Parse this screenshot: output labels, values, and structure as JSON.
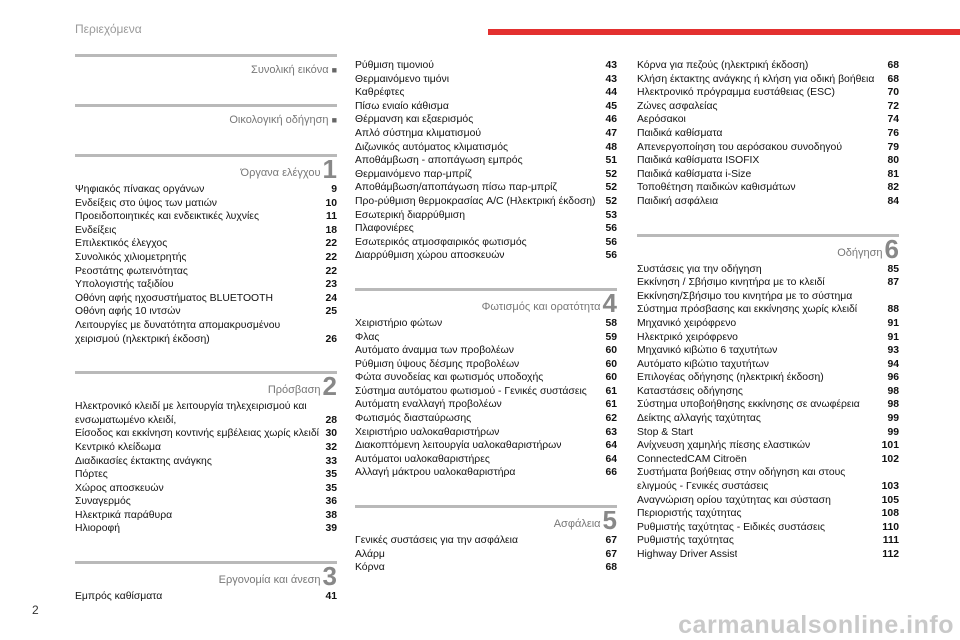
{
  "header": {
    "title": "Περιεχόμενα"
  },
  "page_number": "2",
  "watermark": "carmanualsonline.info",
  "columns": [
    {
      "blocks": [
        {
          "heading": {
            "title": "Συνολική εικόνα",
            "marker": "■"
          },
          "entries": []
        },
        {
          "heading": {
            "title": "Οικολογική οδήγηση",
            "marker": "■"
          },
          "entries": []
        },
        {
          "heading": {
            "title": "Όργανα ελέγχου",
            "number": "1"
          },
          "entries": [
            {
              "lines": [
                "Ψηφιακός πίνακας οργάνων"
              ],
              "page": "9"
            },
            {
              "lines": [
                "Ενδείξεις στο ύψος των ματιών"
              ],
              "page": "10"
            },
            {
              "lines": [
                "Προειδοποιητικές και ενδεικτικές λυχνίες"
              ],
              "page": "11"
            },
            {
              "lines": [
                "Ενδείξεις"
              ],
              "page": "18"
            },
            {
              "lines": [
                "Επιλεκτικός έλεγχος"
              ],
              "page": "22"
            },
            {
              "lines": [
                "Συνολικός χιλιομετρητής"
              ],
              "page": "22"
            },
            {
              "lines": [
                "Ρεοστάτης φωτεινότητας"
              ],
              "page": "22"
            },
            {
              "lines": [
                "Υπολογιστής ταξιδίου"
              ],
              "page": "23"
            },
            {
              "lines": [
                "Οθόνη αφής ηχοσυστήματος BLUETOOTH"
              ],
              "page": "24"
            },
            {
              "lines": [
                "Οθόνη αφής 10 ιντσών"
              ],
              "page": "25"
            },
            {
              "lines": [
                "Λειτουργίες με δυνατότητα απομακρυσμένου",
                "χειρισμού (ηλεκτρική έκδοση)"
              ],
              "page": "26"
            }
          ]
        },
        {
          "heading": {
            "title": "Πρόσβαση",
            "number": "2"
          },
          "entries": [
            {
              "lines": [
                "Ηλεκτρονικό κλειδί με λειτουργία τηλεχειρισμού και",
                "ενσωματωμένο κλειδί,"
              ],
              "page": "28"
            },
            {
              "lines": [
                "Είσοδος και εκκίνηση κοντινής εμβέλειας χωρίς κλειδί"
              ],
              "page": "30"
            },
            {
              "lines": [
                "Κεντρικό κλείδωμα"
              ],
              "page": "32"
            },
            {
              "lines": [
                "Διαδικασίες έκτακτης ανάγκης"
              ],
              "page": "33"
            },
            {
              "lines": [
                "Πόρτες"
              ],
              "page": "35"
            },
            {
              "lines": [
                "Χώρος αποσκευών"
              ],
              "page": "35"
            },
            {
              "lines": [
                "Συναγερμός"
              ],
              "page": "36"
            },
            {
              "lines": [
                "Ηλεκτρικά παράθυρα"
              ],
              "page": "38"
            },
            {
              "lines": [
                "Ηλιοροφή"
              ],
              "page": "39"
            }
          ]
        },
        {
          "heading": {
            "title": "Εργονομία και άνεση",
            "number": "3"
          },
          "entries": [
            {
              "lines": [
                "Εμπρός καθίσματα"
              ],
              "page": "41"
            }
          ]
        }
      ]
    },
    {
      "blocks": [
        {
          "entries": [
            {
              "lines": [
                "Ρύθμιση τιμονιού"
              ],
              "page": "43"
            },
            {
              "lines": [
                "Θερμαινόμενο τιμόνι"
              ],
              "page": "43"
            },
            {
              "lines": [
                "Καθρέφτες"
              ],
              "page": "44"
            },
            {
              "lines": [
                "Πίσω ενιαίο κάθισμα"
              ],
              "page": "45"
            },
            {
              "lines": [
                "Θέρμανση και εξαερισμός"
              ],
              "page": "46"
            },
            {
              "lines": [
                "Απλό σύστημα κλιματισμού"
              ],
              "page": "47"
            },
            {
              "lines": [
                "Διζωνικός αυτόματος κλιματισμός"
              ],
              "page": "48"
            },
            {
              "lines": [
                "Αποθάμβωση - αποπάγωση εμπρός"
              ],
              "page": "51"
            },
            {
              "lines": [
                "Θερμαινόμενο παρ-μπρίζ"
              ],
              "page": "52"
            },
            {
              "lines": [
                "Αποθάμβωση/αποπάγωση πίσω παρ-μπρίζ"
              ],
              "page": "52"
            },
            {
              "lines": [
                "Προ-ρύθμιση θερμοκρασίας A/C (Ηλεκτρική έκδοση)"
              ],
              "page": "52"
            },
            {
              "lines": [
                "Εσωτερική διαρρύθμιση"
              ],
              "page": "53"
            },
            {
              "lines": [
                "Πλαφονιέρες"
              ],
              "page": "56"
            },
            {
              "lines": [
                "Εσωτερικός ατμοσφαιρικός φωτισμός"
              ],
              "page": "56"
            },
            {
              "lines": [
                "Διαρρύθμιση χώρου αποσκευών"
              ],
              "page": "56"
            }
          ]
        },
        {
          "heading": {
            "title": "Φωτισμός και ορατότητα",
            "number": "4"
          },
          "entries": [
            {
              "lines": [
                "Χειριστήριο φώτων"
              ],
              "page": "58"
            },
            {
              "lines": [
                "Φλας"
              ],
              "page": "59"
            },
            {
              "lines": [
                "Αυτόματο άναμμα των προβολέων"
              ],
              "page": "60"
            },
            {
              "lines": [
                "Ρύθμιση ύψους δέσμης προβολέων"
              ],
              "page": "60"
            },
            {
              "lines": [
                "Φώτα συνοδείας και φωτισμός υποδοχής"
              ],
              "page": "60"
            },
            {
              "lines": [
                "Σύστημα αυτόματου φωτισμού - Γενικές συστάσεις"
              ],
              "page": "61"
            },
            {
              "lines": [
                "Αυτόματη εναλλαγή προβολέων"
              ],
              "page": "61"
            },
            {
              "lines": [
                "Φωτισμός διασταύρωσης"
              ],
              "page": "62"
            },
            {
              "lines": [
                "Χειριστήριο υαλοκαθαριστήρων"
              ],
              "page": "63"
            },
            {
              "lines": [
                "Διακοπτόμενη λειτουργία υαλοκαθαριστήρων"
              ],
              "page": "64"
            },
            {
              "lines": [
                "Αυτόματοι υαλοκαθαριστήρες"
              ],
              "page": "64"
            },
            {
              "lines": [
                "Αλλαγή μάκτρου υαλοκαθαριστήρα"
              ],
              "page": "66"
            }
          ]
        },
        {
          "heading": {
            "title": "Ασφάλεια",
            "number": "5"
          },
          "entries": [
            {
              "lines": [
                "Γενικές συστάσεις για την ασφάλεια"
              ],
              "page": "67"
            },
            {
              "lines": [
                "Αλάρμ"
              ],
              "page": "67"
            },
            {
              "lines": [
                "Κόρνα"
              ],
              "page": "68"
            }
          ]
        }
      ]
    },
    {
      "blocks": [
        {
          "entries": [
            {
              "lines": [
                "Κόρνα για πεζούς (ηλεκτρική έκδοση)"
              ],
              "page": "68"
            },
            {
              "lines": [
                "Κλήση έκτακτης ανάγκης ή κλήση για οδική βοήθεια"
              ],
              "page": "68"
            },
            {
              "lines": [
                "Ηλεκτρονικό πρόγραμμα ευστάθειας (ESC)"
              ],
              "page": "70"
            },
            {
              "lines": [
                "Ζώνες ασφαλείας"
              ],
              "page": "72"
            },
            {
              "lines": [
                "Αερόσακοι"
              ],
              "page": "74"
            },
            {
              "lines": [
                "Παιδικά καθίσματα"
              ],
              "page": "76"
            },
            {
              "lines": [
                "Απενεργοποίηση του αερόσακου συνοδηγού"
              ],
              "page": "79"
            },
            {
              "lines": [
                "Παιδικά καθίσματα ISOFIX"
              ],
              "page": "80"
            },
            {
              "lines": [
                "Παιδικά καθίσματα i-Size"
              ],
              "page": "81"
            },
            {
              "lines": [
                "Τοποθέτηση παιδικών καθισμάτων"
              ],
              "page": "82"
            },
            {
              "lines": [
                "Παιδική ασφάλεια"
              ],
              "page": "84"
            }
          ]
        },
        {
          "heading": {
            "title": "Οδήγηση",
            "number": "6"
          },
          "entries": [
            {
              "lines": [
                "Συστάσεις για την οδήγηση"
              ],
              "page": "85"
            },
            {
              "lines": [
                "Εκκίνηση / Σβήσιμο κινητήρα με το κλειδί"
              ],
              "page": "87"
            },
            {
              "lines": [
                "Εκκίνηση/Σβήσιμο του κινητήρα με το σύστημα",
                "Σύστημα πρόσβασης και εκκίνησης χωρίς κλειδί"
              ],
              "page": "88"
            },
            {
              "lines": [
                "Μηχανικό χειρόφρενο"
              ],
              "page": "91"
            },
            {
              "lines": [
                "Ηλεκτρικό χειρόφρενο"
              ],
              "page": "91"
            },
            {
              "lines": [
                "Μηχανικό κιβώτιο 6 ταχυτήτων"
              ],
              "page": "93"
            },
            {
              "lines": [
                "Αυτόματο κιβώτιο ταχυτήτων"
              ],
              "page": "94"
            },
            {
              "lines": [
                "Επιλογέας οδήγησης (ηλεκτρική έκδοση)"
              ],
              "page": "96"
            },
            {
              "lines": [
                "Καταστάσεις οδήγησης"
              ],
              "page": "98"
            },
            {
              "lines": [
                "Σύστημα υποβοήθησης εκκίνησης σε ανωφέρεια"
              ],
              "page": "98"
            },
            {
              "lines": [
                "Δείκτης αλλαγής ταχύτητας"
              ],
              "page": "99"
            },
            {
              "lines": [
                "Stop & Start"
              ],
              "page": "99"
            },
            {
              "lines": [
                "Ανίχνευση χαμηλής πίεσης ελαστικών"
              ],
              "page": "101"
            },
            {
              "lines": [
                "ConnectedCAM Citroën"
              ],
              "page": "102"
            },
            {
              "lines": [
                "Συστήματα βοήθειας στην οδήγηση και στους",
                "ελιγμούς - Γενικές συστάσεις"
              ],
              "page": "103"
            },
            {
              "lines": [
                "Αναγνώριση ορίου ταχύτητας και σύσταση"
              ],
              "page": "105"
            },
            {
              "lines": [
                "Περιοριστής ταχύτητας"
              ],
              "page": "108"
            },
            {
              "lines": [
                "Ρυθμιστής ταχύτητας - Ειδικές συστάσεις"
              ],
              "page": "110"
            },
            {
              "lines": [
                "Ρυθμιστής ταχύτητας"
              ],
              "page": "111"
            },
            {
              "lines": [
                "Highway Driver Assist"
              ],
              "page": "112"
            }
          ]
        }
      ]
    }
  ]
}
